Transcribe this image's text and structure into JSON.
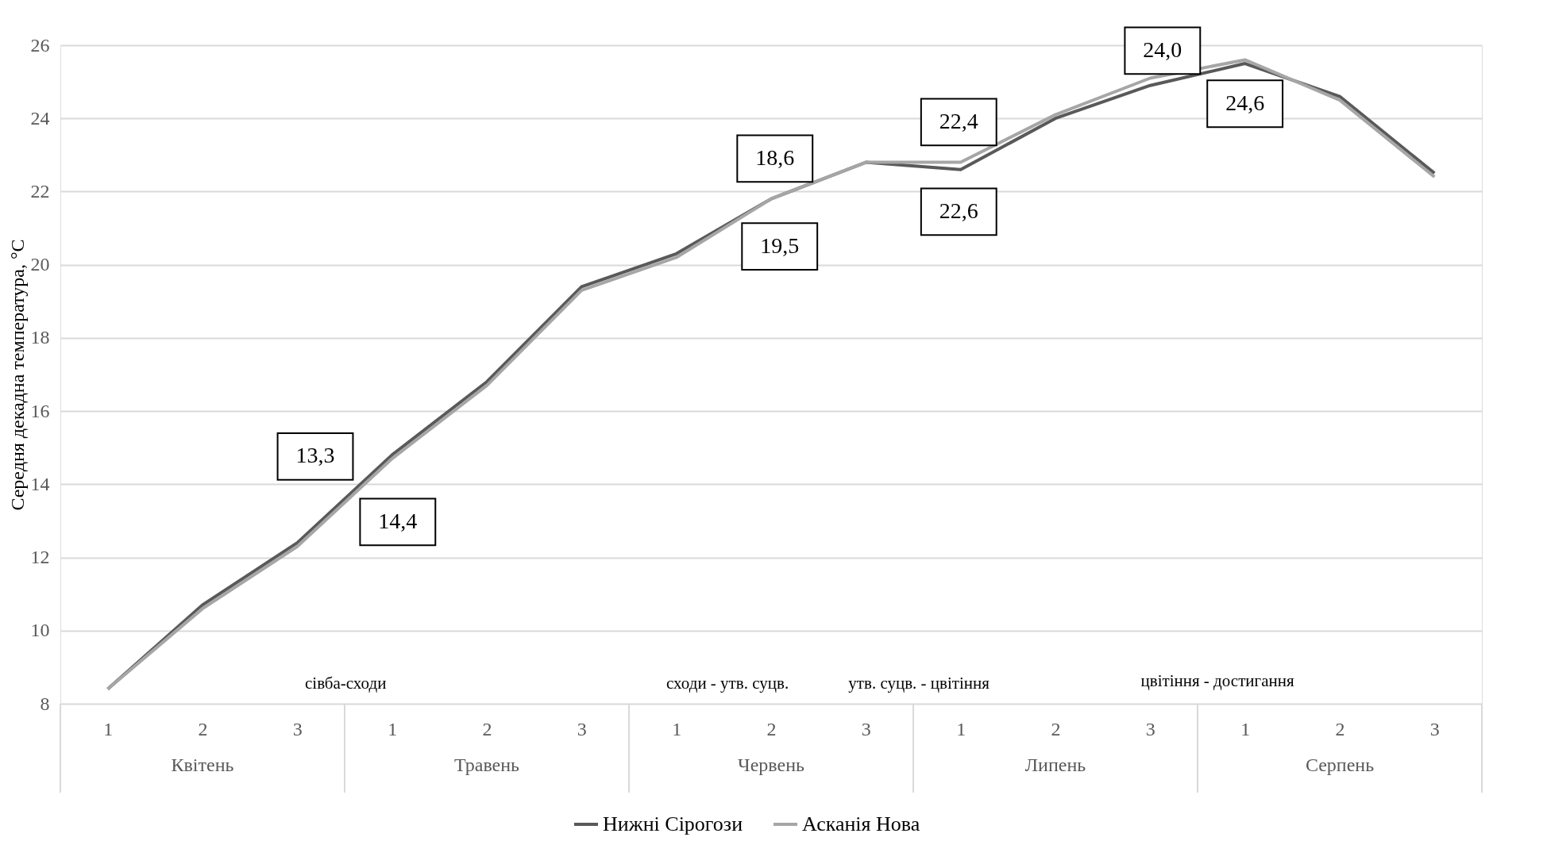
{
  "chart_data": {
    "type": "line",
    "ylabel": "Середня декадна температура, °С",
    "categories": [
      "1",
      "2",
      "3",
      "1",
      "2",
      "3",
      "1",
      "2",
      "3",
      "1",
      "2",
      "3",
      "1",
      "2",
      "3"
    ],
    "series": [
      {
        "name": "Нижні Сірогози",
        "color": "#595959",
        "values": [
          8.4,
          10.7,
          12.4,
          14.8,
          16.8,
          19.4,
          20.3,
          21.8,
          22.8,
          22.6,
          24.0,
          24.9,
          25.5,
          24.6,
          22.5
        ]
      },
      {
        "name": "Асканія Нова",
        "color": "#a6a6a6",
        "values": [
          8.4,
          10.6,
          12.3,
          14.7,
          16.7,
          19.3,
          20.2,
          21.8,
          22.8,
          22.8,
          24.1,
          25.1,
          25.6,
          24.5,
          22.4
        ]
      }
    ],
    "ylim": [
      8,
      26
    ],
    "yticks": [
      8,
      10,
      12,
      14,
      16,
      18,
      20,
      22,
      24,
      26
    ],
    "grid": "y",
    "legend": "bottom",
    "line_style": "solid",
    "marker": "none",
    "annotations": [
      "сівба-сходи",
      "сходи - утв. суцв.",
      "утв. суцв. - цвітіння",
      "цвітіння - достигання",
      "13,3",
      "14,4",
      "18,6",
      "19,5",
      "22,4",
      "22,6",
      "24,0",
      "24,6",
      "Квітень",
      "Травень",
      "Червень",
      "Липень",
      "Серпень"
    ]
  }
}
